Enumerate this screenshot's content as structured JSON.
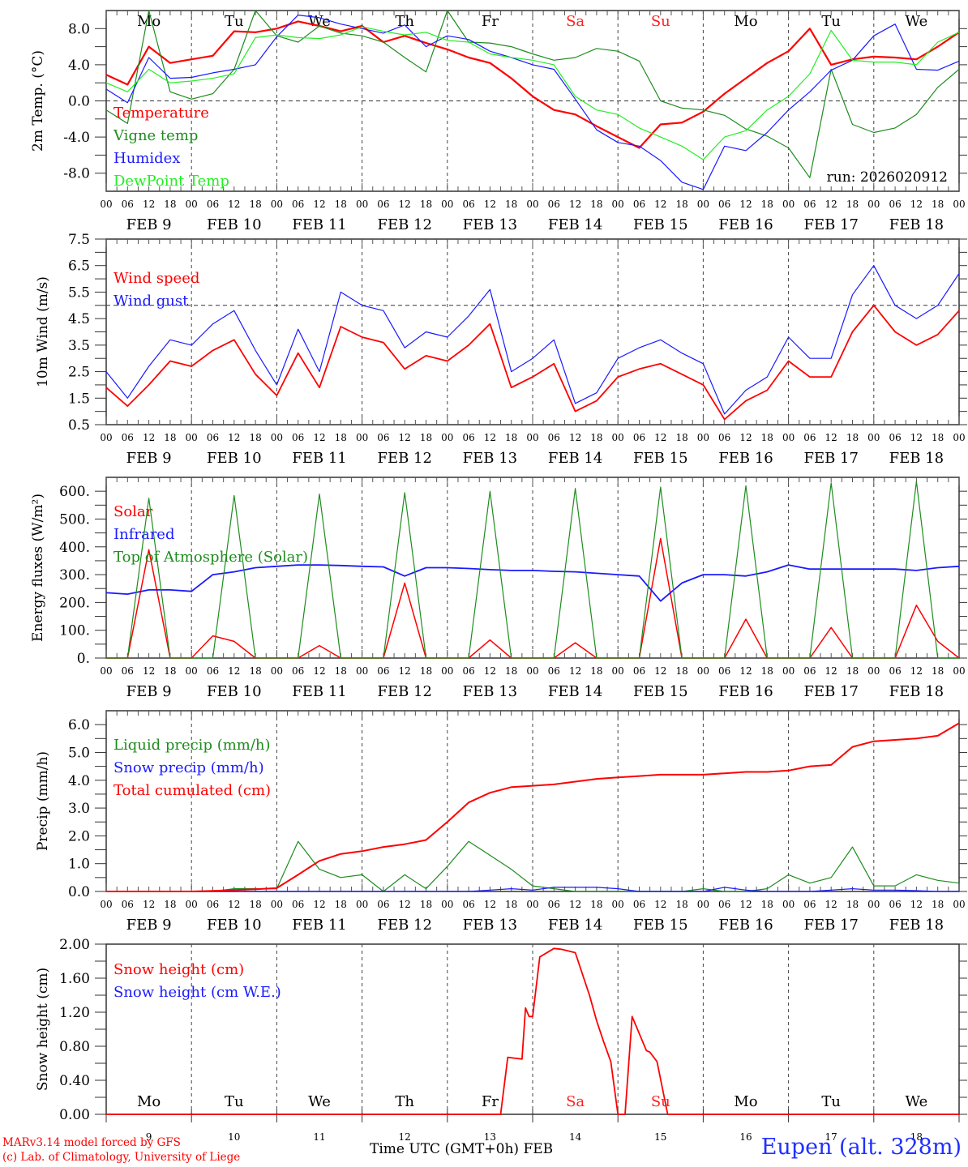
{
  "chart_data": [
    {
      "type": "line",
      "id": "temperature",
      "ylabel": "2m Temp. (°C)",
      "ylim": [
        -10,
        10
      ],
      "yticks": [
        -8.0,
        -4.0,
        0.0,
        4.0,
        8.0
      ],
      "ytick_labels": [
        "-8.0",
        "-4.0",
        "0.0",
        "4.0",
        "8.0"
      ],
      "zero_line": 0,
      "annotation": "run: 2026020912",
      "day_labels": [
        {
          "text": "Mo",
          "color": "#000000"
        },
        {
          "text": "Tu",
          "color": "#000000"
        },
        {
          "text": "We",
          "color": "#000000"
        },
        {
          "text": "Th",
          "color": "#000000"
        },
        {
          "text": "Fr",
          "color": "#000000"
        },
        {
          "text": "Sa",
          "color": "#ff2020"
        },
        {
          "text": "Su",
          "color": "#ff2020"
        },
        {
          "text": "Mo",
          "color": "#000000"
        },
        {
          "text": "Tu",
          "color": "#000000"
        },
        {
          "text": "We",
          "color": "#000000"
        }
      ],
      "x_hours": [
        0,
        6,
        12,
        18,
        24,
        30,
        36,
        42,
        48,
        54,
        60,
        66,
        72,
        78,
        84,
        90,
        96,
        102,
        108,
        114,
        120,
        126,
        132,
        138,
        144,
        150,
        156,
        162,
        168,
        174,
        180,
        186,
        192,
        198,
        204,
        210,
        216,
        222,
        228,
        234,
        240
      ],
      "series": [
        {
          "name": "Temperature",
          "color": "#ff0000",
          "width": 2.2,
          "values": [
            2.9,
            1.8,
            6.0,
            4.2,
            4.6,
            5.0,
            7.7,
            7.6,
            8.0,
            8.8,
            8.3,
            7.7,
            8.3,
            6.5,
            7.2,
            6.4,
            5.7,
            4.8,
            4.2,
            2.5,
            0.5,
            -1.0,
            -1.5,
            -2.8,
            -4.0,
            -5.2,
            -2.6,
            -2.4,
            -1.2,
            0.8,
            2.5,
            4.2,
            5.5,
            8.0,
            4.0,
            4.6,
            4.9,
            4.8,
            4.6,
            6.0,
            7.6
          ]
        },
        {
          "name": "Vigne temp",
          "color": "#1e8c1e",
          "width": 1.2,
          "values": [
            -1.0,
            -2.5,
            10.5,
            1.0,
            0.2,
            0.8,
            3.5,
            10.0,
            7.2,
            6.5,
            8.3,
            7.5,
            7.2,
            6.5,
            4.8,
            3.2,
            10.0,
            6.5,
            6.4,
            6.0,
            5.2,
            4.5,
            4.8,
            5.8,
            5.5,
            4.4,
            0.0,
            -0.8,
            -1.0,
            -1.6,
            -3.1,
            -3.9,
            -5.2,
            -8.5,
            3.5,
            -2.6,
            -3.5,
            -3.0,
            -1.5,
            1.5,
            3.5
          ]
        },
        {
          "name": "Humidex",
          "color": "#1a1aff",
          "width": 1.2,
          "values": [
            1.3,
            -0.2,
            4.8,
            2.5,
            2.6,
            3.1,
            3.5,
            4.0,
            7.1,
            9.5,
            9.2,
            8.5,
            8.0,
            7.5,
            8.4,
            6.0,
            7.2,
            6.8,
            5.5,
            4.8,
            4.0,
            3.5,
            0.2,
            -3.2,
            -4.6,
            -5.0,
            -6.6,
            -9.0,
            -9.8,
            -5.0,
            -5.5,
            -3.5,
            -1.0,
            1.0,
            3.4,
            4.5,
            7.2,
            8.5,
            3.5,
            3.4,
            4.4
          ]
        },
        {
          "name": "DewPoint Temp",
          "color": "#22ee22",
          "width": 1.2,
          "values": [
            2.0,
            1.0,
            3.5,
            2.0,
            2.2,
            2.5,
            3.0,
            7.0,
            7.3,
            7.0,
            6.9,
            7.3,
            8.2,
            7.7,
            7.3,
            7.6,
            6.7,
            6.5,
            5.2,
            4.8,
            4.5,
            4.0,
            0.5,
            -1.0,
            -1.5,
            -3.0,
            -4.0,
            -5.0,
            -6.5,
            -4.0,
            -3.3,
            -1.0,
            0.5,
            3.0,
            7.8,
            4.5,
            4.3,
            4.3,
            4.0,
            6.5,
            7.6
          ]
        }
      ]
    },
    {
      "type": "line",
      "id": "wind",
      "ylabel": "10m Wind (m/s)",
      "ylim": [
        0.5,
        7.5
      ],
      "yticks": [
        0.5,
        1.5,
        2.5,
        3.5,
        4.5,
        5.5,
        6.5,
        7.5
      ],
      "ytick_labels": [
        "0.5",
        "1.5",
        "2.5",
        "3.5",
        "4.5",
        "5.5",
        "6.5",
        "7.5"
      ],
      "ref_line": 5.0,
      "x_hours": [
        0,
        6,
        12,
        18,
        24,
        30,
        36,
        42,
        48,
        54,
        60,
        66,
        72,
        78,
        84,
        90,
        96,
        102,
        108,
        114,
        120,
        126,
        132,
        138,
        144,
        150,
        156,
        162,
        168,
        174,
        180,
        186,
        192,
        198,
        204,
        210,
        216,
        222,
        228,
        234,
        240
      ],
      "series": [
        {
          "name": "Wind speed",
          "color": "#ff0000",
          "width": 1.8,
          "values": [
            1.9,
            1.2,
            2.0,
            2.9,
            2.7,
            3.3,
            3.7,
            2.4,
            1.6,
            3.2,
            1.9,
            4.2,
            3.8,
            3.6,
            2.6,
            3.1,
            2.9,
            3.5,
            4.3,
            1.9,
            2.3,
            2.8,
            1.0,
            1.4,
            2.3,
            2.6,
            2.8,
            2.4,
            2.0,
            0.7,
            1.4,
            1.8,
            2.9,
            2.3,
            2.3,
            4.0,
            5.0,
            4.0,
            3.5,
            3.9,
            4.8
          ]
        },
        {
          "name": "Wind gust",
          "color": "#1a1aff",
          "width": 1.2,
          "values": [
            2.5,
            1.5,
            2.7,
            3.7,
            3.5,
            4.3,
            4.8,
            3.3,
            2.0,
            4.1,
            2.5,
            5.5,
            5.0,
            4.8,
            3.4,
            4.0,
            3.8,
            4.6,
            5.6,
            2.5,
            3.0,
            3.7,
            1.3,
            1.7,
            3.0,
            3.4,
            3.7,
            3.2,
            2.8,
            0.9,
            1.8,
            2.3,
            3.8,
            3.0,
            3.0,
            5.4,
            6.5,
            5.0,
            4.5,
            5.0,
            6.2
          ]
        }
      ]
    },
    {
      "type": "line",
      "id": "energy",
      "ylabel": "Energy fluxes (W/m²)",
      "ylim": [
        0,
        650
      ],
      "yticks": [
        0,
        100,
        200,
        300,
        400,
        500,
        600
      ],
      "ytick_labels": [
        "0.",
        "100.",
        "200.",
        "300.",
        "400.",
        "500.",
        "600."
      ],
      "x_hours": [
        0,
        6,
        12,
        18,
        24,
        30,
        36,
        42,
        48,
        54,
        60,
        66,
        72,
        78,
        84,
        90,
        96,
        102,
        108,
        114,
        120,
        126,
        132,
        138,
        144,
        150,
        156,
        162,
        168,
        174,
        180,
        186,
        192,
        198,
        204,
        210,
        216,
        222,
        228,
        234,
        240
      ],
      "series": [
        {
          "name": "Solar",
          "color": "#ff0000",
          "width": 1.5,
          "values": [
            0,
            0,
            390,
            0,
            0,
            80,
            60,
            0,
            0,
            0,
            45,
            0,
            0,
            0,
            270,
            0,
            0,
            0,
            65,
            0,
            0,
            0,
            55,
            0,
            0,
            0,
            430,
            0,
            0,
            0,
            140,
            0,
            0,
            0,
            110,
            0,
            0,
            0,
            190,
            60,
            0
          ]
        },
        {
          "name": "Infrared",
          "color": "#1a1aff",
          "width": 1.8,
          "values": [
            235,
            230,
            245,
            245,
            240,
            300,
            310,
            325,
            330,
            335,
            335,
            333,
            330,
            328,
            295,
            325,
            325,
            322,
            318,
            315,
            315,
            312,
            310,
            305,
            300,
            295,
            205,
            270,
            300,
            300,
            295,
            310,
            335,
            320,
            320,
            320,
            320,
            320,
            315,
            325,
            330
          ]
        },
        {
          "name": "Top of Atmosphere (Solar)",
          "color": "#1e8c1e",
          "width": 1.2,
          "values": [
            0,
            0,
            575,
            0,
            0,
            0,
            585,
            0,
            0,
            0,
            590,
            0,
            0,
            0,
            595,
            0,
            0,
            0,
            600,
            0,
            0,
            0,
            610,
            0,
            0,
            0,
            615,
            0,
            0,
            0,
            620,
            0,
            0,
            0,
            630,
            0,
            0,
            0,
            635,
            0,
            0
          ]
        }
      ]
    },
    {
      "type": "line",
      "id": "precip",
      "ylabel": "Precip (mm/h)",
      "ylim": [
        0,
        6.5
      ],
      "yticks": [
        0,
        1,
        2,
        3,
        4,
        5,
        6
      ],
      "ytick_labels": [
        "0.0",
        "1.0",
        "2.0",
        "3.0",
        "4.0",
        "5.0",
        "6.0"
      ],
      "x_hours": [
        0,
        6,
        12,
        18,
        24,
        30,
        36,
        42,
        48,
        54,
        60,
        66,
        72,
        78,
        84,
        90,
        96,
        102,
        108,
        114,
        120,
        126,
        132,
        138,
        144,
        150,
        156,
        162,
        168,
        174,
        180,
        186,
        192,
        198,
        204,
        210,
        216,
        222,
        228,
        234,
        240
      ],
      "series": [
        {
          "name": "Liquid precip (mm/h)",
          "color": "#1e8c1e",
          "width": 1.2,
          "values": [
            0,
            0,
            0,
            0,
            0,
            0,
            0.1,
            0.1,
            0.1,
            1.8,
            0.8,
            0.5,
            0.6,
            0.0,
            0.6,
            0.1,
            0.9,
            1.8,
            1.3,
            0.8,
            0.2,
            0.1,
            0,
            0,
            0,
            0,
            0,
            0,
            0.1,
            0,
            0,
            0.1,
            0.6,
            0.3,
            0.5,
            1.6,
            0.2,
            0.2,
            0.6,
            0.4,
            0.3
          ]
        },
        {
          "name": "Snow precip (mm/h)",
          "color": "#1a1aff",
          "width": 1.2,
          "values": [
            0,
            0,
            0,
            0,
            0,
            0,
            0,
            0,
            0,
            0,
            0,
            0,
            0,
            0,
            0,
            0,
            0,
            0,
            0.05,
            0.1,
            0.05,
            0.15,
            0.15,
            0.15,
            0.1,
            0,
            0,
            0,
            0,
            0.15,
            0.05,
            0,
            0,
            0,
            0.05,
            0.1,
            0.05,
            0.05,
            0.03,
            0,
            0
          ]
        },
        {
          "name": "Total cumulated (cm)",
          "color": "#ff0000",
          "width": 2,
          "values": [
            0,
            0,
            0,
            0,
            0,
            0.02,
            0.05,
            0.08,
            0.12,
            0.6,
            1.1,
            1.35,
            1.45,
            1.6,
            1.7,
            1.85,
            2.5,
            3.2,
            3.55,
            3.75,
            3.8,
            3.85,
            3.95,
            4.05,
            4.1,
            4.15,
            4.2,
            4.2,
            4.2,
            4.25,
            4.3,
            4.3,
            4.35,
            4.5,
            4.55,
            5.2,
            5.4,
            5.45,
            5.5,
            5.6,
            6.05
          ]
        }
      ]
    },
    {
      "type": "line",
      "id": "snow",
      "ylabel": "Snow height (cm)",
      "ylim": [
        0,
        2.0
      ],
      "yticks": [
        0,
        0.4,
        0.8,
        1.2,
        1.6,
        2.0
      ],
      "ytick_labels": [
        "0.00",
        "0.40",
        "0.80",
        "1.20",
        "1.60",
        "2.00"
      ],
      "xlabel": "Time UTC (GMT+0h) FEB",
      "date_labels": [
        "9",
        "10",
        "11",
        "12",
        "13",
        "14",
        "15",
        "16",
        "17",
        "18"
      ],
      "x_hours": [
        0,
        24,
        48,
        72,
        96,
        108,
        111,
        113,
        117,
        118,
        119,
        120,
        122,
        126,
        128,
        132,
        136,
        138,
        140,
        142,
        144,
        146,
        148,
        150,
        152,
        153,
        155,
        158,
        160,
        162,
        163,
        165,
        240
      ],
      "series": [
        {
          "name": "Snow height (cm)",
          "color": "#ff0000",
          "width": 1.8,
          "values": [
            0,
            0,
            0,
            0,
            0,
            0,
            0,
            0.67,
            0.65,
            1.25,
            1.15,
            1.15,
            1.85,
            1.95,
            1.94,
            1.9,
            1.4,
            1.1,
            0.85,
            0.62,
            0,
            0,
            1.15,
            0.95,
            0.75,
            0.73,
            0.62,
            0,
            0,
            0,
            0,
            0,
            0
          ]
        },
        {
          "name": "Snow height (cm W.E.)",
          "color": "#1a1aff",
          "width": 1.2,
          "values": []
        }
      ]
    }
  ],
  "x_axis": {
    "tick_labels": [
      "00",
      "06",
      "12",
      "18"
    ],
    "dates": [
      "FEB  9",
      "FEB 10",
      "FEB 11",
      "FEB 12",
      "FEB 13",
      "FEB 14",
      "FEB 15",
      "FEB 16",
      "FEB 17",
      "FEB 18"
    ],
    "last_tick": "00",
    "days": 10
  },
  "footer": {
    "credit_line1": "MARv3.14 model forced by GFS",
    "credit_line2": "(c) Lab. of Climatology, University of Liege",
    "station": "Eupen (alt. 328m)"
  }
}
